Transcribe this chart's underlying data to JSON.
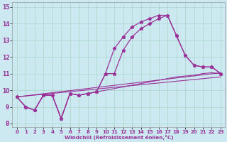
{
  "background_color": "#cce8f0",
  "line_color": "#993399",
  "xlim": [
    0,
    23
  ],
  "ylim": [
    7.8,
    15.3
  ],
  "xticks": [
    0,
    1,
    2,
    3,
    4,
    5,
    6,
    7,
    8,
    9,
    10,
    11,
    12,
    13,
    14,
    15,
    16,
    17,
    18,
    19,
    20,
    21,
    22,
    23
  ],
  "yticks": [
    8,
    9,
    10,
    11,
    12,
    13,
    14,
    15
  ],
  "xlabel": "Windchill (Refroidissement éolien,°C)",
  "grid_color": "#aad4cc",
  "curve1": [
    9.6,
    9.0,
    8.8,
    9.7,
    9.7,
    8.3,
    9.8,
    9.7,
    9.8,
    9.9,
    11.0,
    12.5,
    13.2,
    13.8,
    14.1,
    14.3,
    14.5,
    14.5,
    13.3,
    12.1,
    11.5,
    11.4,
    11.4,
    11.0
  ],
  "curve2": [
    9.6,
    9.0,
    8.8,
    9.7,
    9.7,
    8.3,
    9.8,
    9.7,
    9.8,
    9.9,
    11.0,
    11.0,
    12.4,
    13.2,
    13.7,
    14.0,
    14.3,
    14.5,
    13.3,
    12.1,
    11.5,
    11.4,
    11.4,
    11.0
  ],
  "trend1_x": [
    0,
    23
  ],
  "trend1_y": [
    9.6,
    11.05
  ],
  "trend2_x": [
    0,
    23
  ],
  "trend2_y": [
    9.6,
    10.8
  ],
  "flat1": [
    9.6,
    9.0,
    8.8,
    9.7,
    9.7,
    8.3,
    9.8,
    9.7,
    9.8,
    9.9,
    10.0,
    10.1,
    10.2,
    10.3,
    10.4,
    10.5,
    10.6,
    10.7,
    10.8,
    10.85,
    10.9,
    11.0,
    11.05,
    11.0
  ]
}
